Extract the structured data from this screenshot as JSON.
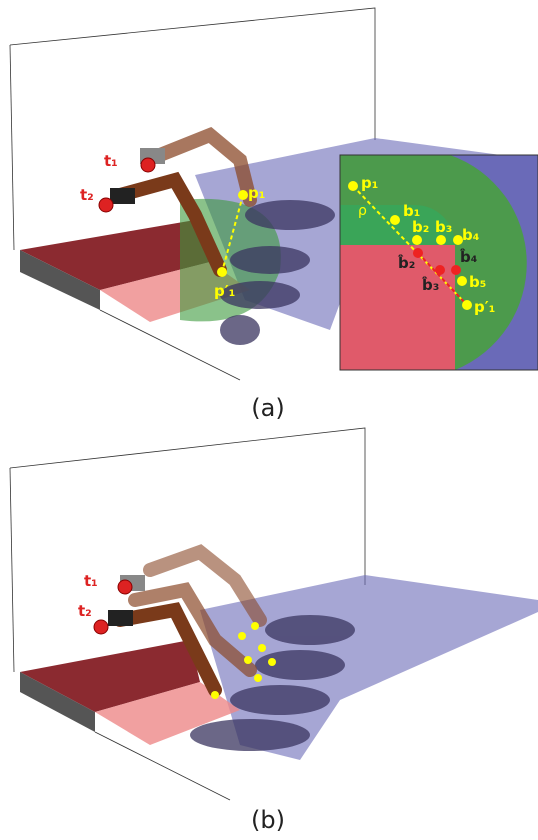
{
  "figure_a": {
    "caption": "(a)",
    "targets": [
      "t₁",
      "t₂"
    ],
    "points": [
      "p₁",
      "p′₁"
    ],
    "inset": {
      "points": [
        "p₁",
        "b₁",
        "b₂",
        "b₃",
        "b₄",
        "b₅",
        "p′₁"
      ],
      "projected": [
        "b̂₂",
        "b̂₃",
        "b̂₄"
      ],
      "radius": "ρ"
    }
  },
  "figure_b": {
    "caption": "(b)",
    "targets": [
      "t₁",
      "t₂"
    ]
  }
}
